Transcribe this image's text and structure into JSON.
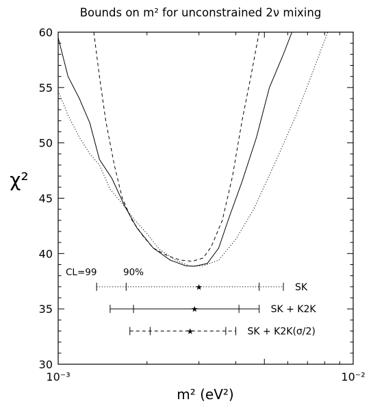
{
  "chart_data": {
    "type": "line",
    "title": "Bounds on m² for unconstrained 2ν mixing",
    "xlabel": "m²  (eV²)",
    "ylabel": "χ²",
    "x_scale": "log",
    "xlim": [
      0.001,
      0.01
    ],
    "ylim": [
      30,
      60
    ],
    "x_tick_labels": [
      "10⁻³",
      "10⁻²"
    ],
    "y_ticks": [
      30,
      35,
      40,
      45,
      50,
      55,
      60
    ],
    "series": [
      {
        "style": "dashed",
        "points": [
          [
            0.00132,
            60
          ],
          [
            0.00138,
            56
          ],
          [
            0.00145,
            52
          ],
          [
            0.00155,
            48
          ],
          [
            0.00165,
            45
          ],
          [
            0.00178,
            43
          ],
          [
            0.00195,
            41.5
          ],
          [
            0.0021,
            40.5
          ],
          [
            0.00235,
            39.8
          ],
          [
            0.0026,
            39.4
          ],
          [
            0.00285,
            39.3
          ],
          [
            0.0031,
            39.6
          ],
          [
            0.0033,
            40.6
          ],
          [
            0.0036,
            43
          ],
          [
            0.0039,
            47
          ],
          [
            0.0042,
            52
          ],
          [
            0.0045,
            56
          ],
          [
            0.0048,
            60
          ]
        ]
      },
      {
        "style": "solid",
        "points": [
          [
            0.001,
            59.5
          ],
          [
            0.00108,
            56
          ],
          [
            0.00118,
            54
          ],
          [
            0.00128,
            51.8
          ],
          [
            0.00138,
            48.5
          ],
          [
            0.00152,
            46.8
          ],
          [
            0.00168,
            44.3
          ],
          [
            0.00185,
            42.3
          ],
          [
            0.0021,
            40.5
          ],
          [
            0.0024,
            39.4
          ],
          [
            0.0027,
            38.9
          ],
          [
            0.0029,
            38.85
          ],
          [
            0.0032,
            39.1
          ],
          [
            0.0035,
            40.5
          ],
          [
            0.0038,
            43.3
          ],
          [
            0.0042,
            46.5
          ],
          [
            0.0047,
            50.5
          ],
          [
            0.0052,
            55
          ],
          [
            0.0058,
            58
          ],
          [
            0.0062,
            60
          ]
        ]
      },
      {
        "style": "dotted",
        "points": [
          [
            0.001,
            54.7
          ],
          [
            0.00108,
            52.5
          ],
          [
            0.00118,
            50.5
          ],
          [
            0.00128,
            49
          ],
          [
            0.00138,
            48
          ],
          [
            0.0015,
            45.8
          ],
          [
            0.00165,
            44.5
          ],
          [
            0.00182,
            43
          ],
          [
            0.002,
            41.8
          ],
          [
            0.0022,
            40.4
          ],
          [
            0.0025,
            39.4
          ],
          [
            0.0028,
            38.85
          ],
          [
            0.0031,
            38.9
          ],
          [
            0.0035,
            39.4
          ],
          [
            0.004,
            41.3
          ],
          [
            0.0046,
            44
          ],
          [
            0.0055,
            48.5
          ],
          [
            0.0064,
            52.5
          ],
          [
            0.0072,
            56
          ],
          [
            0.0078,
            58.5
          ],
          [
            0.0082,
            60
          ]
        ]
      }
    ],
    "intervals": [
      {
        "label": "SK",
        "style": "dotted",
        "y": 37,
        "best_fit": 0.003,
        "cl90": [
          0.0017,
          0.0048
        ],
        "cl99": [
          0.00135,
          0.0058
        ]
      },
      {
        "label": "SK + K2K",
        "style": "solid",
        "y": 35,
        "best_fit": 0.0029,
        "cl90": [
          0.0018,
          0.0041
        ],
        "cl99": [
          0.0015,
          0.0048
        ]
      },
      {
        "label": "SK + K2K(σ/2)",
        "style": "dashed",
        "y": 33,
        "best_fit": 0.0028,
        "cl90": [
          0.00205,
          0.0037
        ],
        "cl99": [
          0.00175,
          0.004
        ]
      }
    ],
    "annotations": {
      "cl99": "CL=99",
      "cl90": "90%"
    },
    "grid": false
  }
}
